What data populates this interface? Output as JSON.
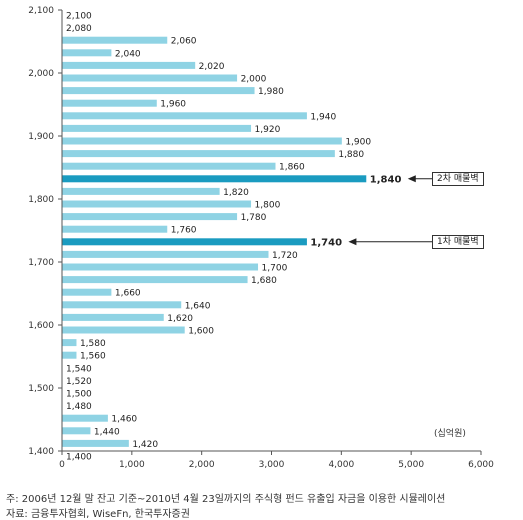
{
  "chart_data": {
    "type": "bar",
    "orientation": "horizontal",
    "title": "",
    "xlabel": "",
    "ylabel": "",
    "unit_label": "(십억원)",
    "xlim": [
      0,
      6000
    ],
    "ylim": [
      1400,
      2100
    ],
    "xticks": [
      "0",
      "1,000",
      "2,000",
      "3,000",
      "4,000",
      "5,000",
      "6,000"
    ],
    "yticks": [
      "1,400",
      "1,500",
      "1,600",
      "1,700",
      "1,800",
      "1,900",
      "2,000",
      "2,100"
    ],
    "bar_color": "#8fd3e4",
    "highlight_color": "#1a9bc0",
    "categories": [
      "2,100",
      "2,080",
      "2,060",
      "2,040",
      "2,020",
      "2,000",
      "1,980",
      "1,960",
      "1,940",
      "1,920",
      "1,900",
      "1,880",
      "1,860",
      "1,840",
      "1,820",
      "1,800",
      "1,780",
      "1,760",
      "1,740",
      "1,720",
      "1,700",
      "1,680",
      "1,660",
      "1,640",
      "1,620",
      "1,600",
      "1,580",
      "1,560",
      "1,540",
      "1,520",
      "1,500",
      "1,480",
      "1,460",
      "1,440",
      "1,420",
      "1,400"
    ],
    "values": [
      0,
      0,
      1500,
      700,
      1900,
      2500,
      2750,
      1350,
      3500,
      2700,
      4000,
      3900,
      3050,
      4350,
      2250,
      2700,
      2500,
      1500,
      3500,
      2950,
      2800,
      2650,
      700,
      1700,
      1450,
      1750,
      200,
      200,
      0,
      0,
      0,
      0,
      650,
      400,
      950,
      0
    ],
    "highlighted": [
      "1,840",
      "1,740"
    ],
    "annotations": [
      {
        "category": "1,840",
        "label": "2차 매물벽"
      },
      {
        "category": "1,740",
        "label": "1차 매물벽"
      }
    ]
  },
  "notes": {
    "note1": "주: 2006년 12월 말 잔고 기준~2010년 4월 23일까지의 주식형 펀드 유출입 자금을 이용한 시뮬레이션",
    "note2": "자료: 금융투자협회, WiseFn, 한국투자증권"
  }
}
